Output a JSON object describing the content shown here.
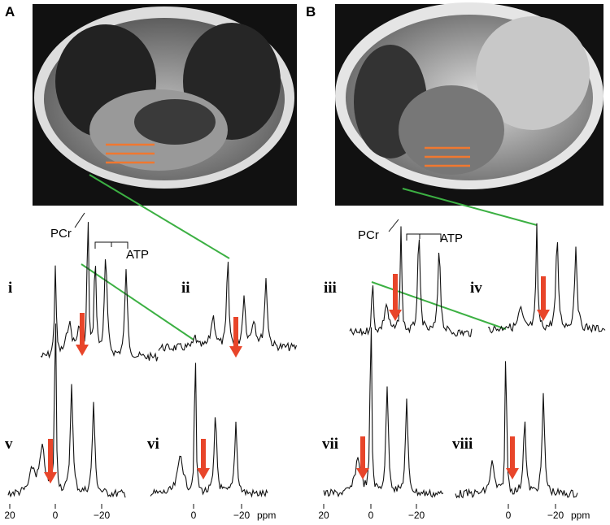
{
  "panels": [
    {
      "label": "A",
      "pcr": "PCr",
      "atp": "ATP",
      "spectra": [
        {
          "label": "i"
        },
        {
          "label": "ii"
        },
        {
          "label": "v"
        },
        {
          "label": "vi"
        }
      ],
      "axes": [
        {
          "ticks": [
            "20",
            "0",
            "−20"
          ]
        },
        {
          "ticks": [
            "0",
            "−20"
          ],
          "unit": "ppm"
        }
      ]
    },
    {
      "label": "B",
      "pcr": "PCr",
      "atp": "ATP",
      "spectra": [
        {
          "label": "iii"
        },
        {
          "label": "iv"
        },
        {
          "label": "vii"
        },
        {
          "label": "viii"
        }
      ],
      "axes": [
        {
          "ticks": [
            "20",
            "0",
            "−20"
          ]
        },
        {
          "ticks": [
            "0",
            "−20"
          ],
          "unit": "ppm"
        }
      ]
    }
  ]
}
